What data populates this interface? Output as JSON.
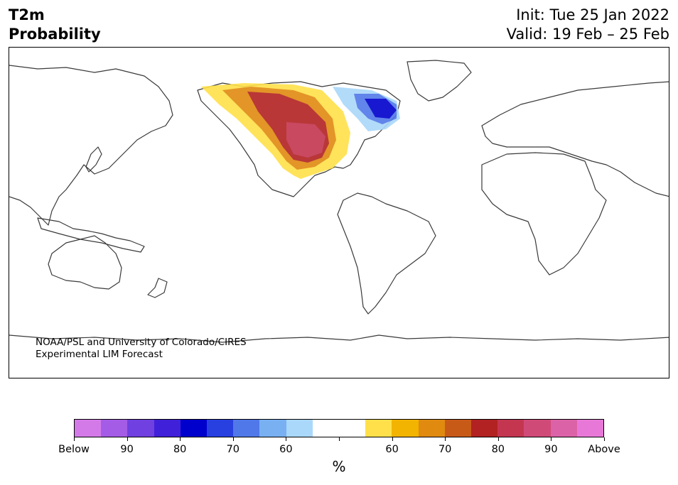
{
  "header": {
    "title_line1": "T2m",
    "title_line2": "Probability",
    "init": "Init: Tue 25 Jan 2022",
    "valid": "Valid: 19 Feb – 25 Feb"
  },
  "map": {
    "projection": "Plate Carree, centered on the Pacific",
    "credit_line1": "NOAA/PSL and University of Colorado/CIRES",
    "credit_line2": "Experimental LIM Forecast",
    "features": [
      {
        "region": "Continental United States and western Canada",
        "category": "Above",
        "peak_percent": 85
      },
      {
        "region": "Alaska and northern Canada",
        "category": "Above",
        "peak_percent": 65
      },
      {
        "region": "Eastern Canada, Quebec and Labrador",
        "category": "Below",
        "peak_percent": 85
      },
      {
        "region": "Baffin Island area",
        "category": "Below",
        "peak_percent": 65
      }
    ]
  },
  "colorbar": {
    "unit_label": "%",
    "colors": [
      "#d47ae8",
      "#a45ce6",
      "#7040e0",
      "#4020d8",
      "#0000cd",
      "#2840e0",
      "#5078e8",
      "#78b0f2",
      "#aad8fa",
      "#ffffff",
      "#ffffff",
      "#ffe04a",
      "#f2b400",
      "#e08a10",
      "#c85a18",
      "#b22222",
      "#c43650",
      "#d04a78",
      "#dc62a8",
      "#e878d8"
    ],
    "labels": [
      "Below",
      "90",
      "80",
      "70",
      "60",
      "60",
      "70",
      "80",
      "90",
      "Above"
    ]
  }
}
